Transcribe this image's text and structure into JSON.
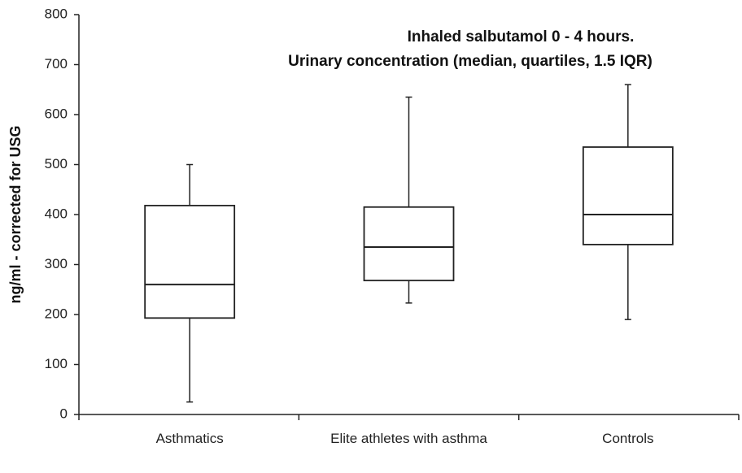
{
  "chart_data": {
    "type": "boxplot",
    "title": [
      "Inhaled salbutamol 0 - 4 hours.",
      "Urinary concentration (median, quartiles, 1.5 IQR)"
    ],
    "y_label": "ng/ml - corrected for USG",
    "categories": [
      "Asthmatics",
      "Elite athletes with asthma",
      "Controls"
    ],
    "whisker_low": [
      25,
      223,
      190
    ],
    "q1": [
      193,
      268,
      340
    ],
    "median": [
      260,
      335,
      400
    ],
    "q3": [
      418,
      415,
      535
    ],
    "whisker_high": [
      500,
      635,
      660
    ],
    "color": "#222222",
    "ylim": [
      0,
      800
    ],
    "yticks": [
      0,
      100,
      200,
      300,
      400,
      500,
      600,
      700,
      800
    ],
    "grid": false
  }
}
